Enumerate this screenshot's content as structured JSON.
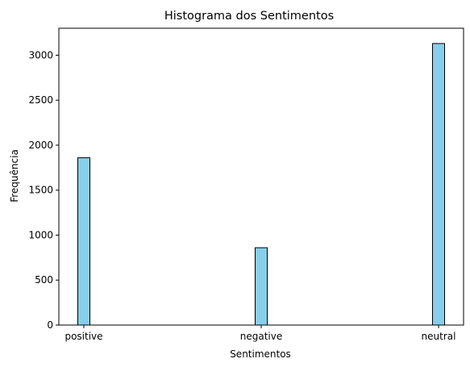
{
  "chart_data": {
    "type": "bar",
    "title": "Histograma dos Sentimentos",
    "xlabel": "Sentimentos",
    "ylabel": "Frequência",
    "categories": [
      "positive",
      "negative",
      "neutral"
    ],
    "values": [
      1860,
      860,
      3130
    ],
    "ylim": [
      0,
      3300
    ],
    "yticks": [
      0,
      500,
      1000,
      1500,
      2000,
      2500,
      3000
    ],
    "grid": false,
    "bar_color": "#87ceeb",
    "edge_color": "#000000"
  }
}
